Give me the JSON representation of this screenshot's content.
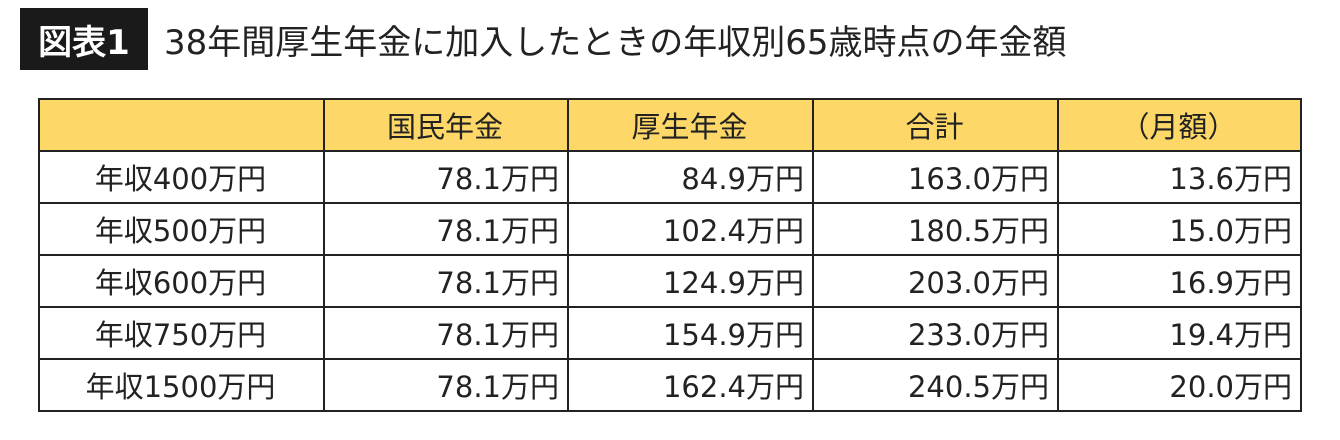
{
  "header": {
    "badge": "図表1",
    "title": "38年間厚生年金に加入したときの年収別65歳時点の年金額"
  },
  "table": {
    "columns": [
      "",
      "国民年金",
      "厚生年金",
      "合計",
      "（月額）"
    ],
    "rows": [
      [
        "年収400万円",
        "78.1万円",
        "84.9万円",
        "163.0万円",
        "13.6万円"
      ],
      [
        "年収500万円",
        "78.1万円",
        "102.4万円",
        "180.5万円",
        "15.0万円"
      ],
      [
        "年収600万円",
        "78.1万円",
        "124.9万円",
        "203.0万円",
        "16.9万円"
      ],
      [
        "年収750万円",
        "78.1万円",
        "154.9万円",
        "233.0万円",
        "19.4万円"
      ],
      [
        "年収1500万円",
        "78.1万円",
        "162.4万円",
        "240.5万円",
        "20.0万円"
      ]
    ]
  }
}
